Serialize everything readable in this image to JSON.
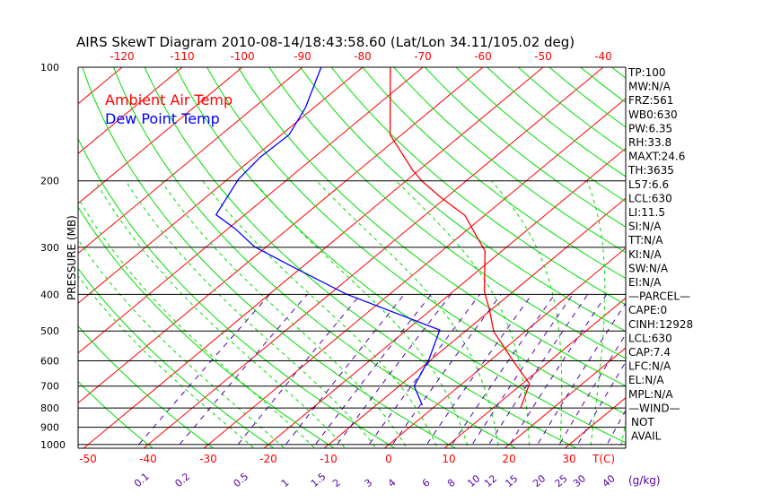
{
  "chart_data": {
    "type": "line",
    "title": "AIRS SkewT Diagram 2010-08-14/18:43:58.60 (Lat/Lon 34.11/105.02 deg)",
    "ylabel": "PRESSURE (MB)",
    "xlabel": "T(C)",
    "mixing_ratio_label": "(g/kg)",
    "pressure_ticks": [
      100,
      200,
      300,
      400,
      500,
      600,
      700,
      800,
      900,
      1000
    ],
    "bottom_temp_ticks": [
      -50,
      -40,
      -30,
      -20,
      -10,
      0,
      10,
      20,
      30
    ],
    "top_temp_ticks": [
      -120,
      -110,
      -100,
      -90,
      -80,
      -70,
      -60,
      -50,
      -40
    ],
    "mixing_ratios": [
      0.1,
      0.2,
      0.5,
      1,
      1.5,
      2,
      3,
      4,
      6,
      8,
      10,
      12,
      15,
      20,
      25,
      30,
      40
    ],
    "ylim": [
      1000,
      100
    ],
    "xlim_bottom": [
      -52,
      40
    ],
    "legend": [
      "Ambient Air Temp",
      "Dew Point Temp"
    ],
    "legend_placement": "top-left",
    "colors": {
      "temp": "#ff0000",
      "dew": "#0000ff",
      "isotherm": "#ff0000",
      "adiabat": "#00dd00",
      "mixing": "#5500aa",
      "isobar": "#000000"
    },
    "series": [
      {
        "name": "Ambient Air Temp",
        "points": [
          [
            800,
            14.6
          ],
          [
            690,
            11.2
          ],
          [
            592,
            3.2
          ],
          [
            502,
            -5.2
          ],
          [
            438,
            -10.4
          ],
          [
            393,
            -14.8
          ],
          [
            307,
            -22.8
          ],
          [
            278,
            -27.6
          ],
          [
            247,
            -33.3
          ],
          [
            221,
            -41
          ],
          [
            201,
            -47.1
          ],
          [
            188,
            -50.9
          ],
          [
            151,
            -61.9
          ],
          [
            100,
            -75.4
          ]
        ]
      },
      {
        "name": "Dew Point Temp",
        "points": [
          [
            787,
            -2.3
          ],
          [
            700,
            -7.5
          ],
          [
            592,
            -10.5
          ],
          [
            497,
            -14.5
          ],
          [
            399,
            -37.3
          ],
          [
            337,
            -51.9
          ],
          [
            299,
            -62
          ],
          [
            268,
            -68.8
          ],
          [
            246,
            -74.8
          ],
          [
            198,
            -78.2
          ],
          [
            173,
            -79
          ],
          [
            151,
            -78.7
          ],
          [
            128,
            -81.4
          ],
          [
            100,
            -86.9
          ]
        ]
      }
    ]
  },
  "indices": [
    "TP:100",
    "MW:N/A",
    "FRZ:561",
    "WB0:630",
    "PW:6.35",
    "RH:33.8",
    "MAXT:24.6",
    "TH:3635",
    "L57:6.6",
    "LCL:630",
    "LI:11.5",
    "SI:N/A",
    "TT:N/A",
    "KI:N/A",
    "SW:N/A",
    "EI:N/A",
    "—PARCEL—",
    "CAPE:0",
    "CINH:12928",
    "LCL:630",
    "CAP:7.4",
    "LFC:N/A",
    "EL:N/A",
    "MPL:N/A",
    "—WIND—",
    "NOT",
    "AVAIL"
  ]
}
